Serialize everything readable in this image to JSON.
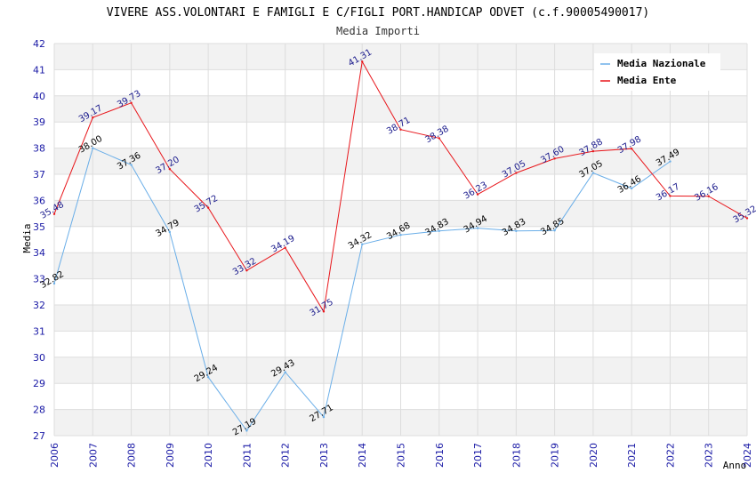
{
  "chart_data": {
    "type": "line",
    "title": "VIVERE ASS.VOLONTARI E FAMIGLI E C/FIGLI PORT.HANDICAP ODVET (c.f.90005490017)",
    "subtitle": "Media Importi",
    "xlabel": "Anno",
    "ylabel": "Media",
    "ylim": [
      27,
      42
    ],
    "y_ticks": [
      27,
      28,
      29,
      30,
      31,
      32,
      33,
      34,
      35,
      36,
      37,
      38,
      39,
      40,
      41,
      42
    ],
    "categories": [
      "2006",
      "2007",
      "2008",
      "2009",
      "2010",
      "2011",
      "2012",
      "2013",
      "2014",
      "2015",
      "2016",
      "2017",
      "2018",
      "2019",
      "2020",
      "2021",
      "2022",
      "2023",
      "2024"
    ],
    "grid": true,
    "legend_position": "top-right",
    "series": [
      {
        "name": "Media Nazionale",
        "color": "#6aaee8",
        "label_color": "#000000",
        "values": [
          32.82,
          38.0,
          37.36,
          34.79,
          29.24,
          27.19,
          29.43,
          27.71,
          34.32,
          34.68,
          34.83,
          34.94,
          34.83,
          34.85,
          37.05,
          36.46,
          37.49,
          null,
          null
        ],
        "labels": [
          "32.82",
          "38.00",
          "37.36",
          "34.79",
          "29.24",
          "27.19",
          "29.43",
          "27.71",
          "34.32",
          "34.68",
          "34.83",
          "34.94",
          "34.83",
          "34.85",
          "37.05",
          "36.46",
          "37.49",
          "",
          ""
        ]
      },
      {
        "name": "Media Ente",
        "color": "#e8161b",
        "label_color": "#1a1a8c",
        "values": [
          35.48,
          39.17,
          39.73,
          37.2,
          35.72,
          33.32,
          34.19,
          31.75,
          41.31,
          38.71,
          38.38,
          36.23,
          37.05,
          37.6,
          37.88,
          37.98,
          36.17,
          36.16,
          35.32
        ],
        "labels": [
          "35.48",
          "39.17",
          "39.73",
          "37.20",
          "35.72",
          "33.32",
          "34.19",
          "31.75",
          "41.31",
          "38.71",
          "38.38",
          "36.23",
          "37.05",
          "37.60",
          "37.88",
          "37.98",
          "36.17",
          "36.16",
          "35.32"
        ]
      }
    ]
  }
}
